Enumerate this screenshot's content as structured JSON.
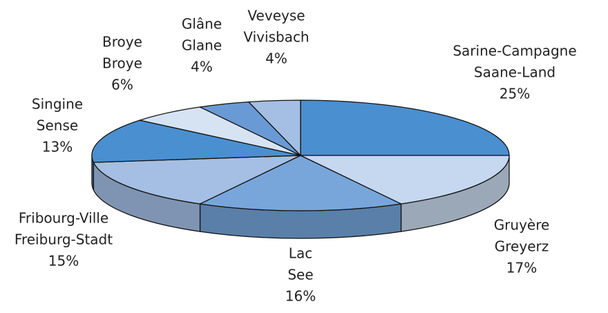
{
  "chart_data": {
    "type": "pie",
    "categories": [
      [
        "Sarine-Campagne",
        "Saane-Land"
      ],
      [
        "Gruyère",
        "Greyerz"
      ],
      [
        "Lac",
        "See"
      ],
      [
        "Fribourg-Ville",
        "Freiburg-Stadt"
      ],
      [
        "Singine",
        "Sense"
      ],
      [
        "Broye",
        "Broye"
      ],
      [
        "Glâne",
        "Glane"
      ],
      [
        "Veveyse",
        "Vivisbach"
      ]
    ],
    "values": [
      25,
      17,
      16,
      15,
      13,
      6,
      4,
      4
    ],
    "value_labels": [
      "25%",
      "17%",
      "16%",
      "15%",
      "13%",
      "6%",
      "4%",
      "4%"
    ],
    "colors": [
      "#4a8fd0",
      "#c5d8ef",
      "#78a6da",
      "#a4bfe3",
      "#4a8fd0",
      "#d6e3f3",
      "#6a9ad6",
      "#a4bfe3"
    ],
    "side_colors": [
      "#3a6fa0",
      "#9aa8b8",
      "#5a7fa8",
      "#7f94b2",
      "#3a6fa0",
      "#9aa8b8",
      "#4f78a8",
      "#7f94b2"
    ]
  }
}
